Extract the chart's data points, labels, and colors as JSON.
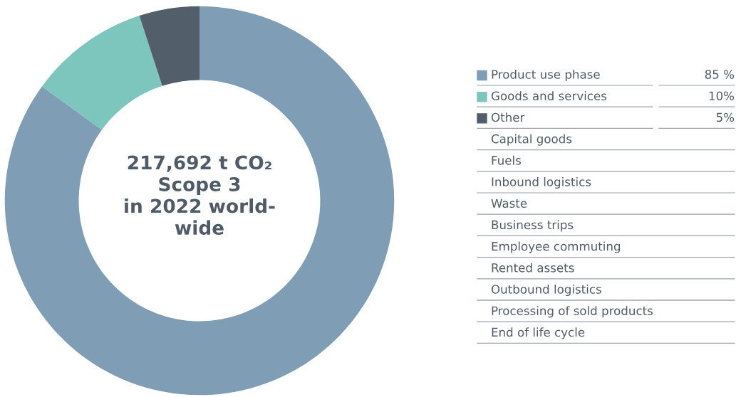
{
  "chart_data": {
    "type": "donut",
    "title": "217,692 t CO₂\nScope 3\nin 2022 world-\nwide",
    "categories": [
      "Product use phase",
      "Goods and services",
      "Other"
    ],
    "values": [
      85,
      10,
      5
    ],
    "colors": [
      "#7f9db4",
      "#7cc6bd",
      "#525e6a"
    ],
    "value_labels": [
      "85 %",
      "10%",
      "5%"
    ],
    "legend": "right",
    "annotations": [
      "Capital goods",
      "Fuels",
      "Inbound logistics",
      "Waste",
      "Business trips",
      "Employee commuting",
      "Rented assets",
      "Outbound logistics",
      "Processing of sold products",
      "End of life cycle"
    ]
  }
}
